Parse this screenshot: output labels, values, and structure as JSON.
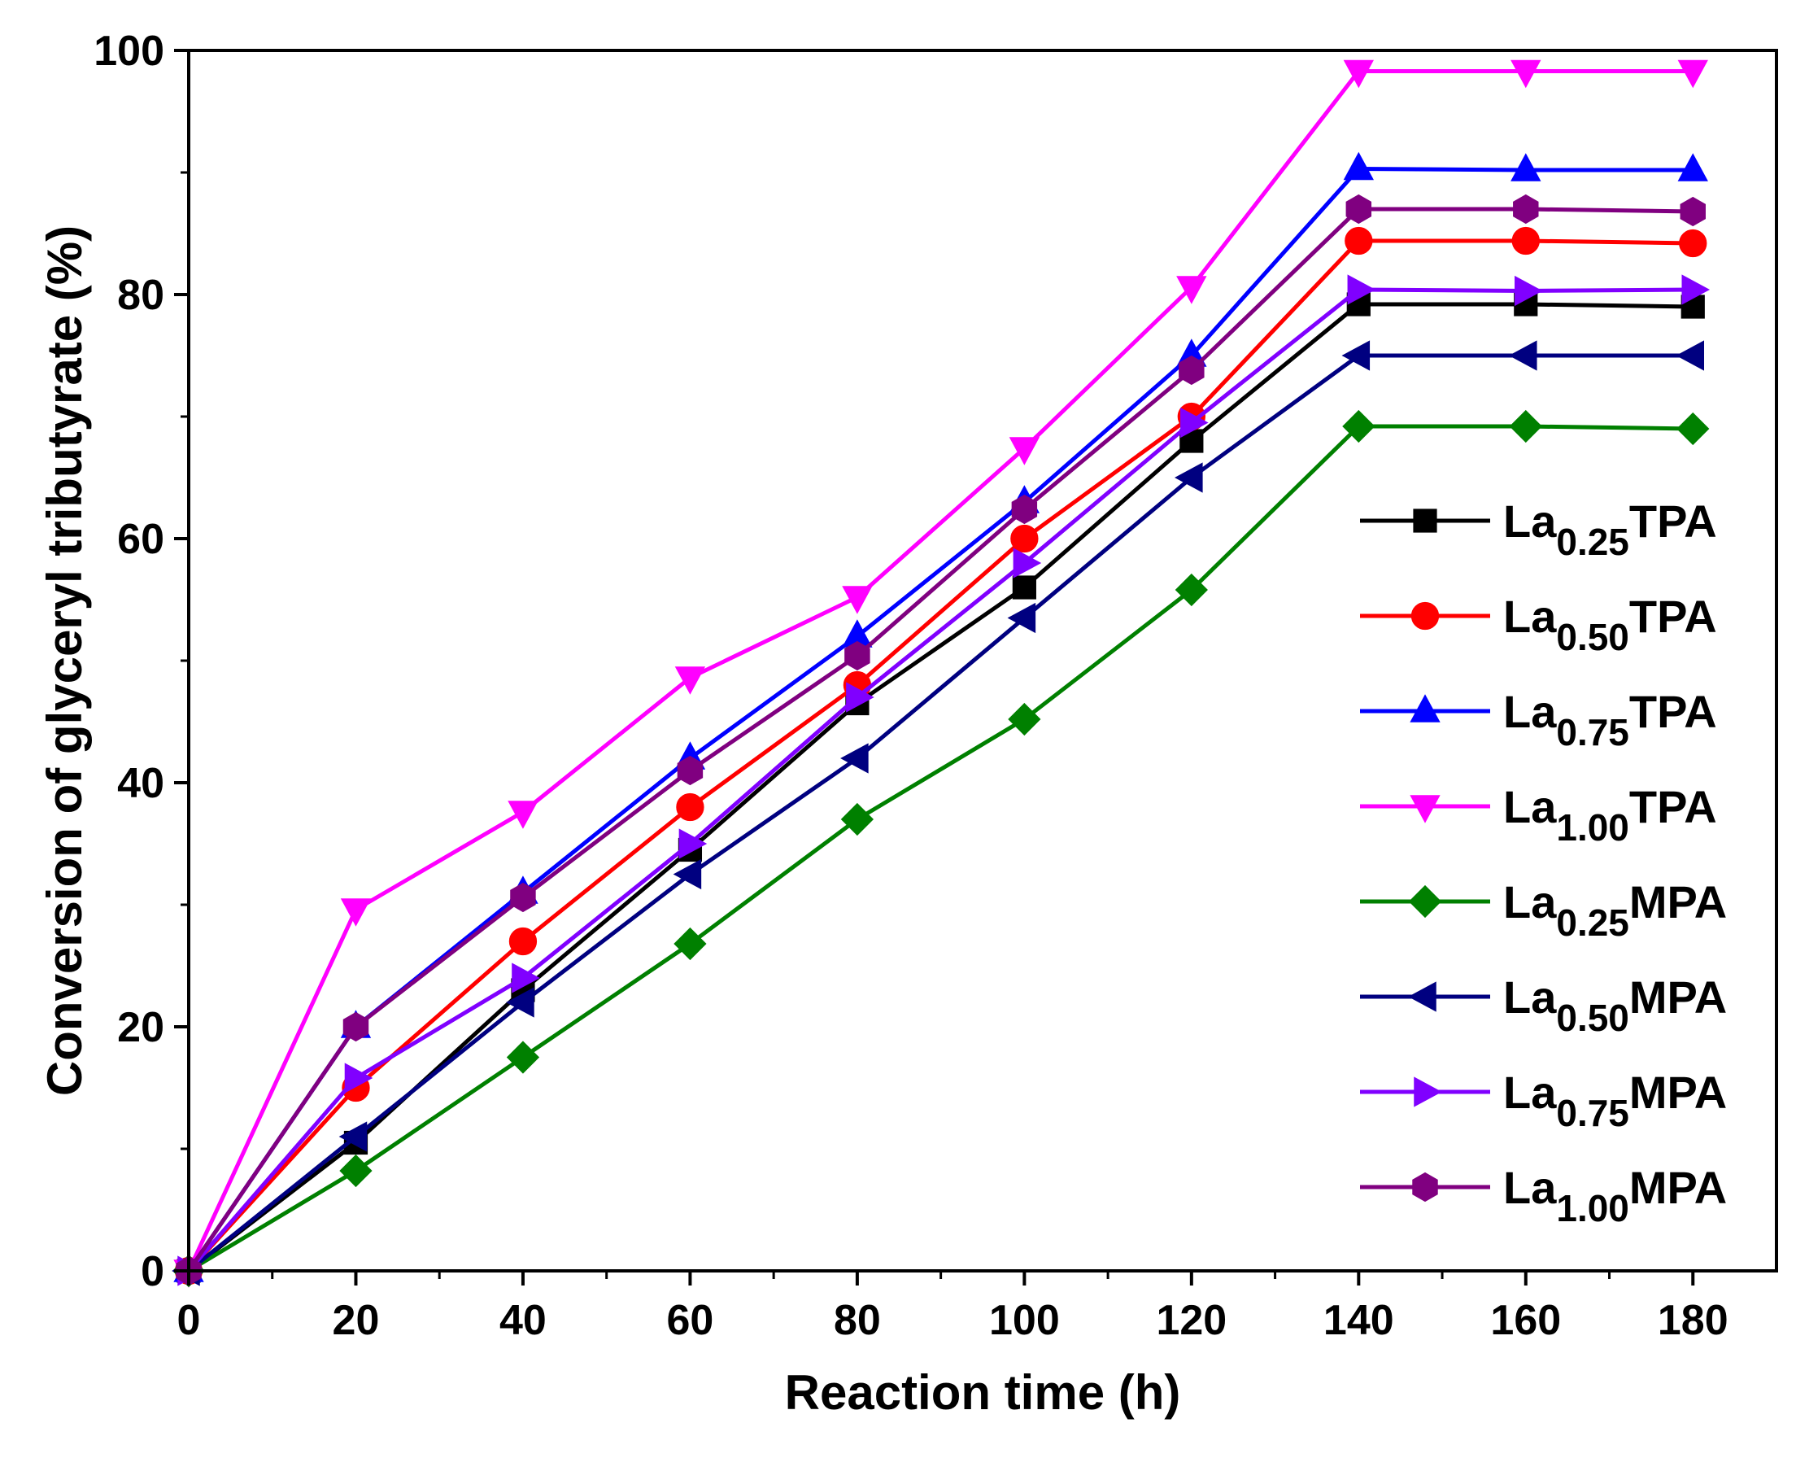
{
  "chart_data": {
    "type": "line",
    "title": "",
    "xlabel": "Reaction time (h)",
    "ylabel": "Conversion of glyceryl tributyrate (%)",
    "xlim": [
      0,
      190
    ],
    "ylim": [
      0,
      100
    ],
    "xticks": [
      0,
      20,
      40,
      60,
      80,
      100,
      120,
      140,
      160,
      180
    ],
    "yticks": [
      0,
      20,
      40,
      60,
      80,
      100
    ],
    "grid": false,
    "legend_position": "right",
    "x": [
      0,
      20,
      40,
      60,
      80,
      100,
      120,
      140,
      160,
      180
    ],
    "series": [
      {
        "name": "La0.25TPA",
        "name_base": "La",
        "name_sub": "0.25",
        "name_tail": "TPA",
        "color": "#000000",
        "marker": "square",
        "values": [
          0,
          10.5,
          23,
          34.5,
          46.5,
          56,
          68,
          79.2,
          79.2,
          79
        ]
      },
      {
        "name": "La0.50TPA",
        "name_base": "La",
        "name_sub": "0.50",
        "name_tail": "TPA",
        "color": "#ff0000",
        "marker": "circle",
        "values": [
          0,
          15,
          27,
          38,
          48,
          60,
          70,
          84.4,
          84.4,
          84.2
        ]
      },
      {
        "name": "La0.75TPA",
        "name_base": "La",
        "name_sub": "0.75",
        "name_tail": "TPA",
        "color": "#0000ff",
        "marker": "triangle-up",
        "values": [
          0,
          20,
          31,
          42,
          52,
          63,
          75,
          90.3,
          90.2,
          90.2
        ]
      },
      {
        "name": "La1.00TPA",
        "name_base": "La",
        "name_sub": "1.00",
        "name_tail": "TPA",
        "color": "#ff00ff",
        "marker": "triangle-down",
        "values": [
          0,
          29.6,
          37.6,
          48.6,
          55.2,
          67.4,
          80.6,
          98.3,
          98.3,
          98.3
        ]
      },
      {
        "name": "La0.25MPA",
        "name_base": "La",
        "name_sub": "0.25",
        "name_tail": "MPA",
        "color": "#008000",
        "marker": "diamond",
        "values": [
          0,
          8.2,
          17.5,
          26.8,
          37,
          45.2,
          55.8,
          69.2,
          69.2,
          69
        ]
      },
      {
        "name": "La0.50MPA",
        "name_base": "La",
        "name_sub": "0.50",
        "name_tail": "MPA",
        "color": "#000080",
        "marker": "triangle-left",
        "values": [
          0,
          11,
          22,
          32.5,
          42,
          53.5,
          65,
          75,
          75,
          75
        ]
      },
      {
        "name": "La0.75MPA",
        "name_base": "La",
        "name_sub": "0.75",
        "name_tail": "MPA",
        "color": "#8000ff",
        "marker": "triangle-right",
        "values": [
          0,
          15.8,
          24,
          35,
          47,
          58,
          69.5,
          80.4,
          80.3,
          80.4
        ]
      },
      {
        "name": "La1.00MPA",
        "name_base": "La",
        "name_sub": "1.00",
        "name_tail": "MPA",
        "color": "#800080",
        "marker": "hexagon",
        "values": [
          0,
          20,
          30.6,
          41,
          50.4,
          62.4,
          73.8,
          87,
          87,
          86.8
        ]
      }
    ]
  }
}
